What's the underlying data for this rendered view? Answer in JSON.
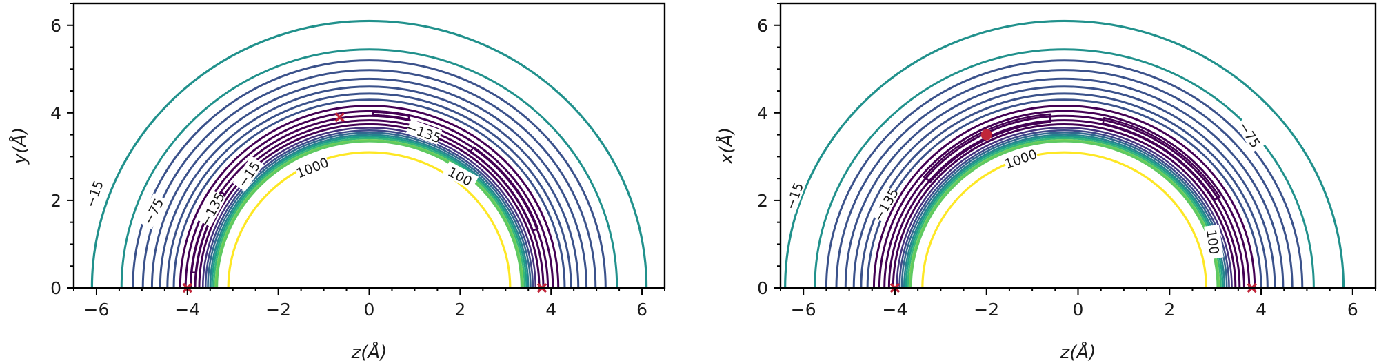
{
  "chart_data": [
    {
      "type": "contour",
      "xlabel": "z(Å)",
      "ylabel": "y(Å)",
      "xlim": [
        -6.5,
        6.5
      ],
      "ylim": [
        0,
        6.5
      ],
      "xticks": [
        -6,
        -4,
        -2,
        0,
        2,
        4,
        6
      ],
      "yticks": [
        0,
        2,
        4,
        6
      ],
      "grid": false,
      "contour_labels": [
        "−15",
        "−75",
        "−135",
        "−15",
        "−135",
        "100",
        "1000"
      ],
      "markers": [
        {
          "symbol": "x",
          "x": -4.0,
          "y": 0.0,
          "color": "#c0263a"
        },
        {
          "symbol": "x",
          "x": -0.65,
          "y": 3.9,
          "color": "#c0263a"
        },
        {
          "symbol": "x",
          "x": 3.8,
          "y": 0.0,
          "color": "#c0263a"
        }
      ]
    },
    {
      "type": "contour",
      "xlabel": "z(Å)",
      "ylabel": "x(Å)",
      "xlim": [
        -6.5,
        6.5
      ],
      "ylim": [
        0,
        6.5
      ],
      "xticks": [
        -6,
        -4,
        -2,
        0,
        2,
        4,
        6
      ],
      "yticks": [
        0,
        2,
        4,
        6
      ],
      "grid": false,
      "contour_labels": [
        "−15",
        "−135",
        "−75",
        "1000",
        "100"
      ],
      "markers": [
        {
          "symbol": "x",
          "x": -4.0,
          "y": 0.0,
          "color": "#c0263a"
        },
        {
          "symbol": "o",
          "x": -2.0,
          "y": 3.5,
          "color": "#c0263a"
        },
        {
          "symbol": "x",
          "x": 3.8,
          "y": 0.0,
          "color": "#c0263a"
        }
      ]
    }
  ],
  "colors": {
    "contour_outer": "#21918c",
    "contour_mid": "#3b528b",
    "contour_deep": "#440154",
    "contour_wall": "#5ec962",
    "contour_repulsive": "#fde725",
    "marker": "#c0263a"
  }
}
